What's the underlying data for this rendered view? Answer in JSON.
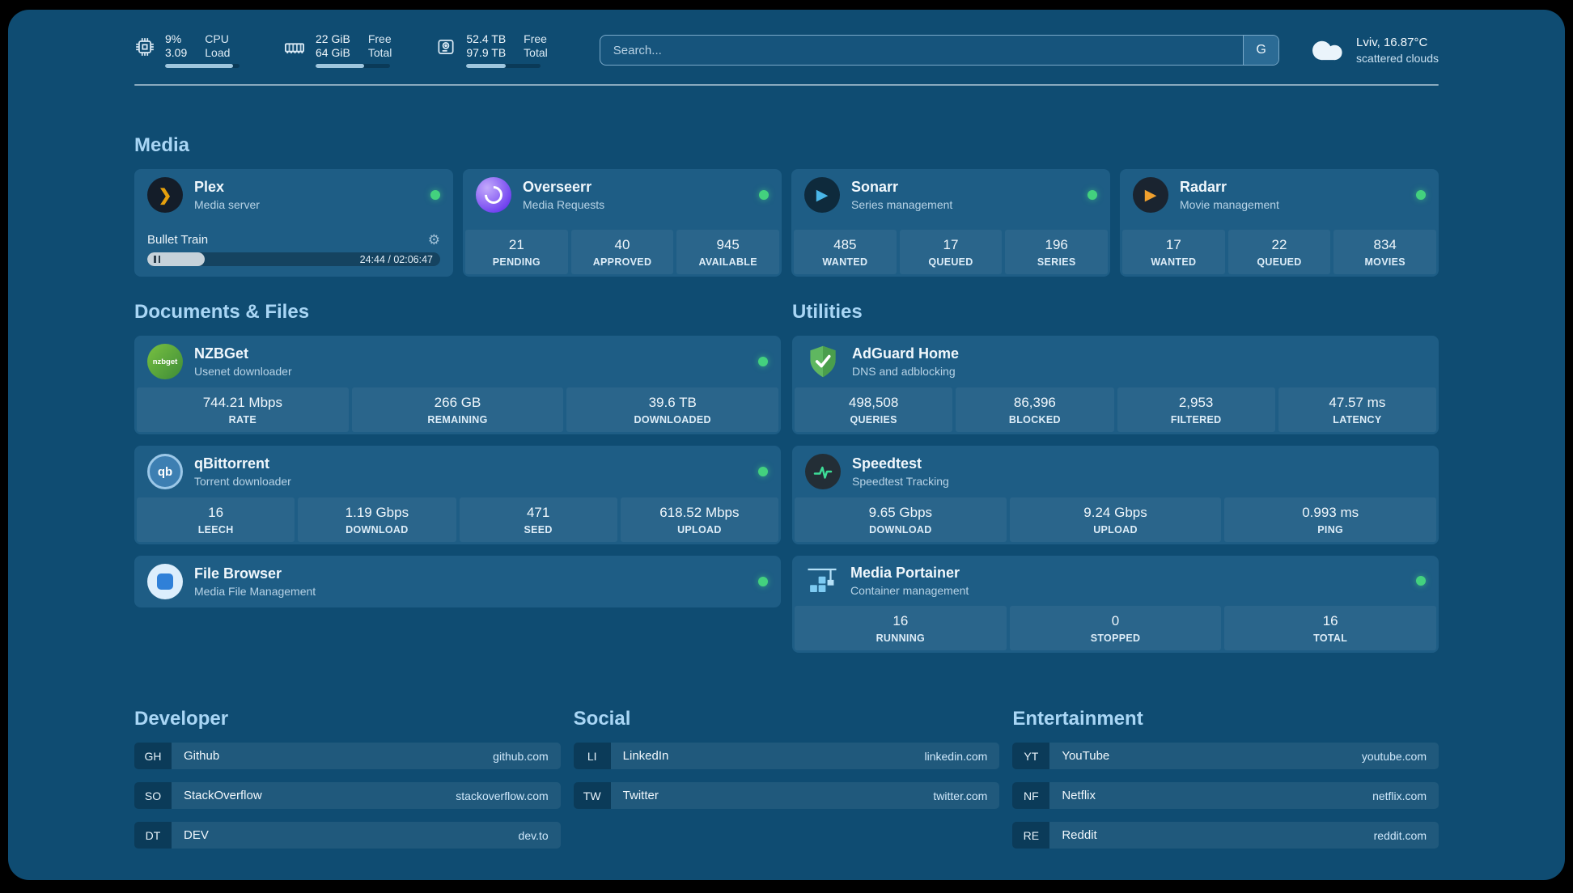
{
  "colors": {
    "background": "#0f4c72",
    "card": "#1e5d85",
    "status_online": "#43d17e",
    "heading": "#a9d6f5",
    "accent": "#e5a00d"
  },
  "topbar": {
    "cpu": {
      "value1": "9%",
      "value2": "3.09",
      "label1": "CPU",
      "label2": "Load",
      "progress": 91
    },
    "memory": {
      "value1": "22 GiB",
      "value2": "64 GiB",
      "label1": "Free",
      "label2": "Total",
      "progress": 65
    },
    "disk": {
      "value1": "52.4 TB",
      "value2": "97.9 TB",
      "label1": "Free",
      "label2": "Total",
      "progress": 53
    },
    "search": {
      "placeholder": "Search...",
      "engine_label": "G"
    },
    "weather": {
      "location": "Lviv, 16.87°C",
      "condition": "scattered clouds"
    }
  },
  "sections": {
    "media": {
      "title": "Media",
      "plex": {
        "name": "Plex",
        "subtitle": "Media server",
        "player": {
          "title": "Bullet Train",
          "time": "24:44 / 02:06:47",
          "progress": 19.6
        }
      },
      "overseerr": {
        "name": "Overseerr",
        "subtitle": "Media Requests",
        "stats": [
          {
            "value": "21",
            "label": "PENDING"
          },
          {
            "value": "40",
            "label": "APPROVED"
          },
          {
            "value": "945",
            "label": "AVAILABLE"
          }
        ]
      },
      "sonarr": {
        "name": "Sonarr",
        "subtitle": "Series management",
        "stats": [
          {
            "value": "485",
            "label": "WANTED"
          },
          {
            "value": "17",
            "label": "QUEUED"
          },
          {
            "value": "196",
            "label": "SERIES"
          }
        ]
      },
      "radarr": {
        "name": "Radarr",
        "subtitle": "Movie management",
        "stats": [
          {
            "value": "17",
            "label": "WANTED"
          },
          {
            "value": "22",
            "label": "QUEUED"
          },
          {
            "value": "834",
            "label": "MOVIES"
          }
        ]
      }
    },
    "documents": {
      "title": "Documents & Files",
      "nzbget": {
        "name": "NZBGet",
        "subtitle": "Usenet downloader",
        "icon_text": "nzbget",
        "stats": [
          {
            "value": "744.21 Mbps",
            "label": "RATE"
          },
          {
            "value": "266 GB",
            "label": "REMAINING"
          },
          {
            "value": "39.6 TB",
            "label": "DOWNLOADED"
          }
        ]
      },
      "qbittorrent": {
        "name": "qBittorrent",
        "subtitle": "Torrent downloader",
        "icon_text": "qb",
        "stats": [
          {
            "value": "16",
            "label": "LEECH"
          },
          {
            "value": "1.19 Gbps",
            "label": "DOWNLOAD"
          },
          {
            "value": "471",
            "label": "SEED"
          },
          {
            "value": "618.52 Mbps",
            "label": "UPLOAD"
          }
        ]
      },
      "filebrowser": {
        "name": "File Browser",
        "subtitle": "Media File Management"
      }
    },
    "utilities": {
      "title": "Utilities",
      "adguard": {
        "name": "AdGuard Home",
        "subtitle": "DNS and adblocking",
        "stats": [
          {
            "value": "498,508",
            "label": "QUERIES"
          },
          {
            "value": "86,396",
            "label": "BLOCKED"
          },
          {
            "value": "2,953",
            "label": "FILTERED"
          },
          {
            "value": "47.57 ms",
            "label": "LATENCY"
          }
        ]
      },
      "speedtest": {
        "name": "Speedtest",
        "subtitle": "Speedtest Tracking",
        "stats": [
          {
            "value": "9.65 Gbps",
            "label": "DOWNLOAD"
          },
          {
            "value": "9.24 Gbps",
            "label": "UPLOAD"
          },
          {
            "value": "0.993 ms",
            "label": "PING"
          }
        ]
      },
      "portainer": {
        "name": "Media Portainer",
        "subtitle": "Container management",
        "stats": [
          {
            "value": "16",
            "label": "RUNNING"
          },
          {
            "value": "0",
            "label": "STOPPED"
          },
          {
            "value": "16",
            "label": "TOTAL"
          }
        ]
      }
    },
    "bookmarks": {
      "developer": {
        "title": "Developer",
        "items": [
          {
            "abbr": "GH",
            "name": "Github",
            "url": "github.com"
          },
          {
            "abbr": "SO",
            "name": "StackOverflow",
            "url": "stackoverflow.com"
          },
          {
            "abbr": "DT",
            "name": "DEV",
            "url": "dev.to"
          }
        ]
      },
      "social": {
        "title": "Social",
        "items": [
          {
            "abbr": "LI",
            "name": "LinkedIn",
            "url": "linkedin.com"
          },
          {
            "abbr": "TW",
            "name": "Twitter",
            "url": "twitter.com"
          }
        ]
      },
      "entertainment": {
        "title": "Entertainment",
        "items": [
          {
            "abbr": "YT",
            "name": "YouTube",
            "url": "youtube.com"
          },
          {
            "abbr": "NF",
            "name": "Netflix",
            "url": "netflix.com"
          },
          {
            "abbr": "RE",
            "name": "Reddit",
            "url": "reddit.com"
          }
        ]
      }
    }
  }
}
